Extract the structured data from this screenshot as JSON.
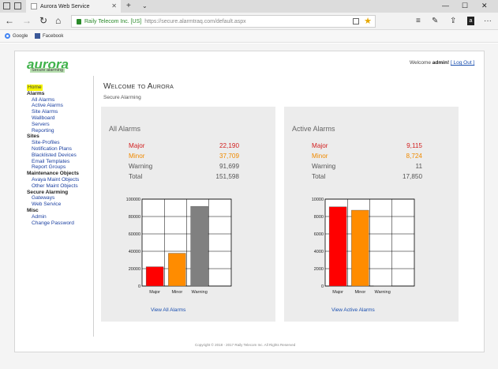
{
  "browser": {
    "tab_title": "Aurora Web Service",
    "org": "Raily Telecom Inc. [US]",
    "url": "https://secure.alarmtraq.com/default.aspx",
    "favorites": [
      "Google",
      "Facebook"
    ]
  },
  "header": {
    "logo": "aurora",
    "logo_sub": "Secure alarming",
    "welcome_prefix": "Welcome",
    "user": "admin!",
    "logout": "[ Log Out ]"
  },
  "sidebar": {
    "home": "Home",
    "items": [
      {
        "label": "Alarms",
        "type": "group"
      },
      {
        "label": "All Alarms",
        "type": "sub"
      },
      {
        "label": "Active Alarms",
        "type": "sub"
      },
      {
        "label": "Site Alarms",
        "type": "sub"
      },
      {
        "label": "Wallboard",
        "type": "sub"
      },
      {
        "label": "Servers",
        "type": "sub"
      },
      {
        "label": "Reporting",
        "type": "sub"
      },
      {
        "label": "Sites",
        "type": "group"
      },
      {
        "label": "Site-Profiles",
        "type": "sub"
      },
      {
        "label": "Notification Plans",
        "type": "sub"
      },
      {
        "label": "Blacklisted Devices",
        "type": "sub"
      },
      {
        "label": "Email Templates",
        "type": "sub"
      },
      {
        "label": "Report Groups",
        "type": "sub"
      },
      {
        "label": "Maintenance Objects",
        "type": "group"
      },
      {
        "label": "Avaya Maint Objects",
        "type": "sub"
      },
      {
        "label": "Other Maint Objects",
        "type": "sub"
      },
      {
        "label": "Secure Alarming",
        "type": "group"
      },
      {
        "label": "Gateways",
        "type": "sub"
      },
      {
        "label": "Web Service",
        "type": "sub"
      },
      {
        "label": "Misc",
        "type": "group"
      },
      {
        "label": "Admin",
        "type": "sub"
      },
      {
        "label": "Change Password",
        "type": "sub"
      }
    ]
  },
  "main": {
    "title": "Welcome to Aurora",
    "subtitle": "Secure Alarming"
  },
  "panels": [
    {
      "title": "All Alarms",
      "stats": [
        {
          "label": "Major",
          "value": "22,190",
          "kind": "major"
        },
        {
          "label": "Minor",
          "value": "37,709",
          "kind": "minor"
        },
        {
          "label": "Warning",
          "value": "91,699",
          "kind": "warning"
        },
        {
          "label": "Total",
          "value": "151,598",
          "kind": "total"
        }
      ],
      "link": "View All Alarms"
    },
    {
      "title": "Active Alarms",
      "stats": [
        {
          "label": "Major",
          "value": "9,115",
          "kind": "major"
        },
        {
          "label": "Minor",
          "value": "8,724",
          "kind": "minor"
        },
        {
          "label": "Warning",
          "value": "11",
          "kind": "warning"
        },
        {
          "label": "Total",
          "value": "17,850",
          "kind": "total"
        }
      ],
      "link": "View Active Alarms"
    }
  ],
  "chart_data": [
    {
      "type": "bar",
      "categories": [
        "Major",
        "Minor",
        "Warning"
      ],
      "values": [
        22190,
        37709,
        91699
      ],
      "colors": [
        "#ff0000",
        "#ff8c00",
        "#808080"
      ],
      "ylim": [
        0,
        100000
      ],
      "yticks": [
        "0",
        "20000",
        "40000",
        "60000",
        "80000",
        "100000"
      ],
      "grid": true
    },
    {
      "type": "bar",
      "categories": [
        "Major",
        "Minor",
        "Warning"
      ],
      "values": [
        9115,
        8724,
        11
      ],
      "colors": [
        "#ff0000",
        "#ff8c00",
        "#808080"
      ],
      "ylim": [
        0,
        10000
      ],
      "yticks": [
        "0",
        "2000",
        "4000",
        "6000",
        "8000",
        "10000"
      ],
      "grid": true
    }
  ],
  "footer": "Copyright © 2018 - 2017 Raily Telecom Inc. All Rights Reserved"
}
